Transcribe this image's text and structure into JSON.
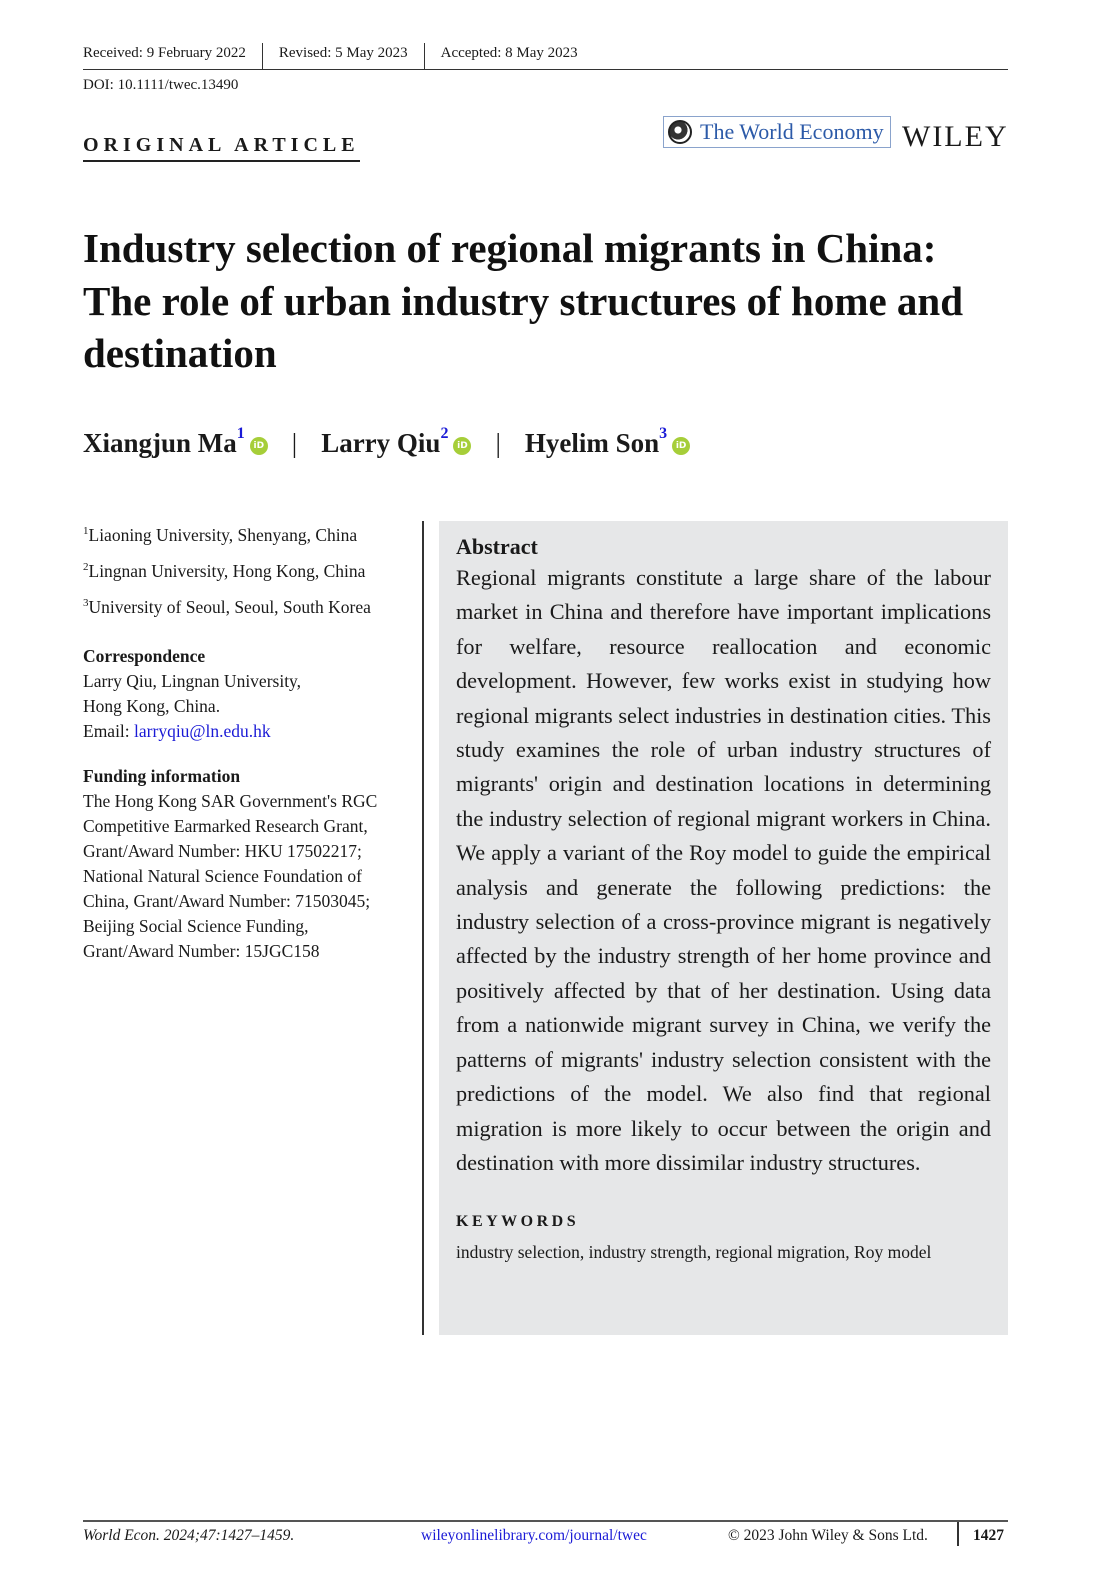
{
  "header": {
    "received": "Received: 9 February 2022",
    "revised": "Revised: 5 May 2023",
    "accepted": "Accepted: 8 May 2023",
    "doi": "DOI: 10.1111/twec.13490"
  },
  "article_type": "ORIGINAL ARTICLE",
  "journal": {
    "name": "The World Economy",
    "publisher": "WILEY"
  },
  "title": "Industry selection of regional migrants in China: The role of urban industry structures of home and destination",
  "authors": [
    {
      "name": "Xiangjun Ma",
      "sup": "1"
    },
    {
      "name": "Larry Qiu",
      "sup": "2"
    },
    {
      "name": "Hyelim Son",
      "sup": "3"
    }
  ],
  "separator": "|",
  "affiliations": [
    {
      "sup": "1",
      "text": "Liaoning University, Shenyang, China"
    },
    {
      "sup": "2",
      "text": "Lingnan University, Hong Kong, China"
    },
    {
      "sup": "3",
      "text": "University of Seoul, Seoul, South Korea"
    }
  ],
  "correspondence": {
    "heading": "Correspondence",
    "text": "Larry Qiu, Lingnan University, Hong Kong, China.",
    "email_label": "Email: ",
    "email": "larryqiu@ln.edu.hk"
  },
  "funding": {
    "heading": "Funding information",
    "text": "The Hong Kong SAR Government's RGC Competitive Earmarked Research Grant, Grant/Award Number: HKU 17502217; National Natural Science Foundation of China, Grant/Award Number: 71503045; Beijing Social Science Funding, Grant/Award Number: 15JGC158"
  },
  "abstract": {
    "heading": "Abstract",
    "text": "Regional migrants constitute a large share of the labour market in China and therefore have important implications for welfare, resource reallocation and economic development. However, few works exist in studying how regional migrants select industries in destination cities. This study examines the role of urban industry structures of migrants' origin and destination locations in determining the industry selection of regional migrant workers in China. We apply a variant of the Roy model to guide the empirical analysis and generate the following predictions: the industry selection of a cross-province migrant is negatively affected by the industry strength of her home province and positively affected by that of her destination. Using data from a nationwide migrant survey in China, we verify the patterns of migrants' industry selection consistent with the predictions of the model. We also find that regional migration is more likely to occur between the origin and destination with more dissimilar industry structures."
  },
  "keywords": {
    "heading": "KEYWORDS",
    "text": "industry selection, industry strength, regional migration, Roy model"
  },
  "footer": {
    "citation": "World Econ. 2024;47:1427–1459.",
    "link": "wileyonlinelibrary.com/journal/twec",
    "copyright": "© 2023 John Wiley & Sons Ltd.",
    "page": "1427"
  },
  "colors": {
    "link": "#1a1ad6",
    "orcid": "#a6ce39",
    "abstract_bg": "#e6e7e8"
  }
}
